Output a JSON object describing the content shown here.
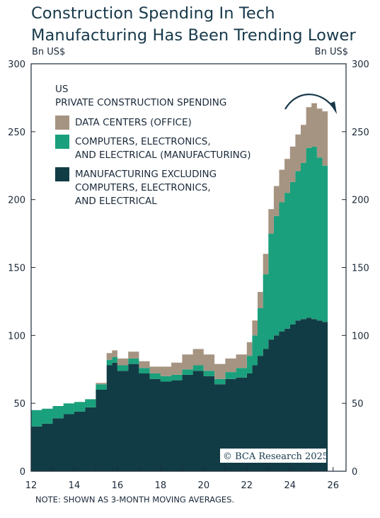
{
  "title_line1": "Construction Spending In Tech",
  "title_line2": "Manufacturing Has Been Trending Lower",
  "unit_left": "Bn US$",
  "unit_right": "Bn US$",
  "note": "NOTE: SHOWN AS 3-MONTH MOVING AVERAGES.",
  "copyright": "© BCA Research 2025",
  "chart_data": {
    "type": "area",
    "stacked": true,
    "title": "US PRIVATE CONSTRUCTION SPENDING",
    "ylabel_left": "Bn US$",
    "ylabel_right": "Bn US$",
    "ylim": [
      0,
      300
    ],
    "xlim": [
      2012,
      2026.6
    ],
    "yticks": [
      0,
      50,
      100,
      150,
      200,
      250,
      300
    ],
    "xticks": [
      {
        "v": 2012,
        "label": "12"
      },
      {
        "v": 2014,
        "label": "14"
      },
      {
        "v": 2016,
        "label": "16"
      },
      {
        "v": 2018,
        "label": "18"
      },
      {
        "v": 2020,
        "label": "20"
      },
      {
        "v": 2022,
        "label": "22"
      },
      {
        "v": 2024,
        "label": "24"
      },
      {
        "v": 2026,
        "label": "26"
      }
    ],
    "legend_title_line1": "US",
    "legend_title_line2": "PRIVATE CONSTRUCTION SPENDING",
    "legend_position": "top-left",
    "x": [
      2012.0,
      2012.5,
      2013.0,
      2013.5,
      2014.0,
      2014.5,
      2015.0,
      2015.5,
      2015.75,
      2016.0,
      2016.5,
      2017.0,
      2017.5,
      2018.0,
      2018.5,
      2019.0,
      2019.5,
      2020.0,
      2020.5,
      2021.0,
      2021.5,
      2022.0,
      2022.25,
      2022.5,
      2022.75,
      2023.0,
      2023.25,
      2023.5,
      2023.75,
      2024.0,
      2024.25,
      2024.5,
      2024.75,
      2025.0,
      2025.25,
      2025.5
    ],
    "series": [
      {
        "name": "MANUFACTURING EXCLUDING COMPUTERS, ELECTRONICS, AND ELECTRICAL",
        "name_lines": [
          "MANUFACTURING EXCLUDING",
          "COMPUTERS, ELECTRONICS,",
          "AND ELECTRICAL"
        ],
        "color": "#123c45",
        "values": [
          33,
          35,
          39,
          42,
          44,
          47,
          60,
          78,
          80,
          74,
          79,
          72,
          68,
          66,
          67,
          71,
          74,
          70,
          64,
          68,
          69,
          72,
          78,
          85,
          90,
          97,
          100,
          103,
          105,
          108,
          111,
          112,
          113,
          112,
          111,
          110
        ]
      },
      {
        "name": "COMPUTERS, ELECTRONICS, AND ELECTRICAL (MANUFACTURING)",
        "name_lines": [
          "COMPUTERS, ELECTRONICS,",
          "AND ELECTRICAL (MANUFACTURING)"
        ],
        "color": "#1aa07c",
        "values": [
          12,
          11,
          9,
          8,
          7,
          6,
          4,
          4,
          4,
          4,
          4,
          4,
          4,
          4,
          4,
          4,
          4,
          4,
          4,
          5,
          7,
          13,
          22,
          35,
          55,
          78,
          88,
          95,
          100,
          105,
          110,
          115,
          125,
          127,
          120,
          115
        ]
      },
      {
        "name": "DATA CENTERS (OFFICE)",
        "name_lines": [
          "DATA CENTERS (OFFICE)"
        ],
        "color": "#a69482",
        "values": [
          0,
          0,
          0,
          0,
          0,
          0,
          1,
          5,
          5,
          5,
          5,
          5,
          5,
          7,
          9,
          11,
          12,
          12,
          11,
          10,
          10,
          10,
          11,
          12,
          15,
          18,
          22,
          24,
          25,
          26,
          27,
          28,
          30,
          32,
          36,
          40
        ]
      }
    ]
  }
}
